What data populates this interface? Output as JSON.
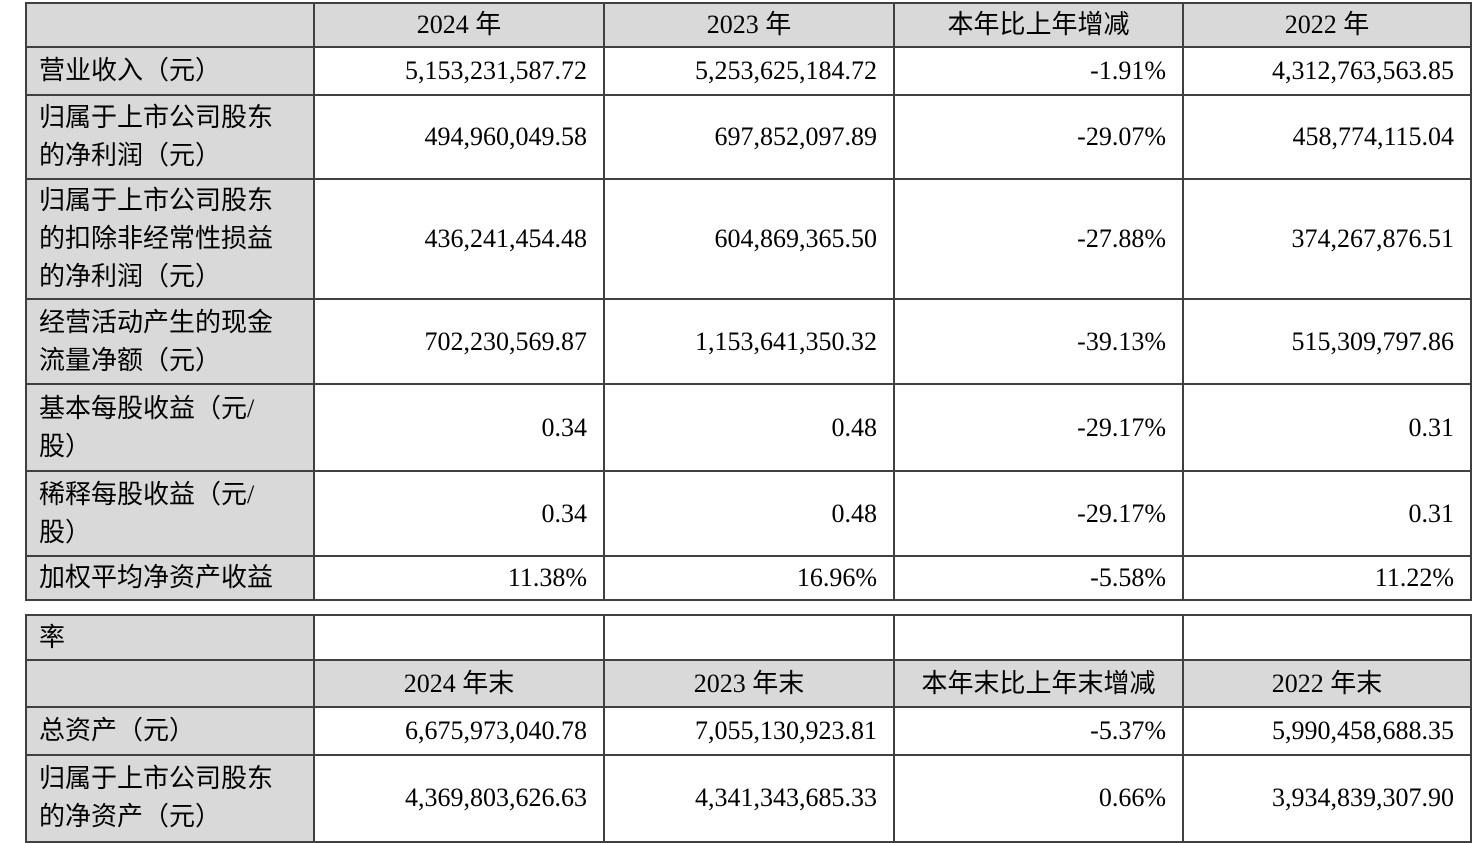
{
  "colors": {
    "header_fill": "#d9d9d9",
    "label_fill": "#d9d9d9",
    "border": "#404040",
    "text": "#000000",
    "background": "#ffffff"
  },
  "table1": {
    "headers": [
      "",
      "2024 年",
      "2023 年",
      "本年比上年增减",
      "2022 年"
    ],
    "rows": [
      {
        "label": "营业收入（元）",
        "values": [
          "5,153,231,587.72",
          "5,253,625,184.72",
          "-1.91%",
          "4,312,763,563.85"
        ]
      },
      {
        "label": "归属于上市公司股东\n的净利润（元）",
        "values": [
          "494,960,049.58",
          "697,852,097.89",
          "-29.07%",
          "458,774,115.04"
        ]
      },
      {
        "label": "归属于上市公司股东\n的扣除非经常性损益\n的净利润（元）",
        "values": [
          "436,241,454.48",
          "604,869,365.50",
          "-27.88%",
          "374,267,876.51"
        ]
      },
      {
        "label": "经营活动产生的现金\n流量净额（元）",
        "values": [
          "702,230,569.87",
          "1,153,641,350.32",
          "-39.13%",
          "515,309,797.86"
        ]
      },
      {
        "label": "基本每股收益（元/\n股）",
        "values": [
          "0.34",
          "0.48",
          "-29.17%",
          "0.31"
        ]
      },
      {
        "label": "稀释每股收益（元/\n股）",
        "values": [
          "0.34",
          "0.48",
          "-29.17%",
          "0.31"
        ]
      },
      {
        "label": "加权平均净资产收益",
        "values": [
          "11.38%",
          "16.96%",
          "-5.58%",
          "11.22%"
        ]
      }
    ]
  },
  "table2": {
    "continuation_label": "率",
    "continuation_values": [
      "",
      "",
      "",
      ""
    ],
    "headers": [
      "",
      "2024 年末",
      "2023 年末",
      "本年末比上年末增减",
      "2022 年末"
    ],
    "rows": [
      {
        "label": "总资产（元）",
        "values": [
          "6,675,973,040.78",
          "7,055,130,923.81",
          "-5.37%",
          "5,990,458,688.35"
        ]
      },
      {
        "label": "归属于上市公司股东\n的净资产（元）",
        "values": [
          "4,369,803,626.63",
          "4,341,343,685.33",
          "0.66%",
          "3,934,839,307.90"
        ]
      }
    ]
  }
}
